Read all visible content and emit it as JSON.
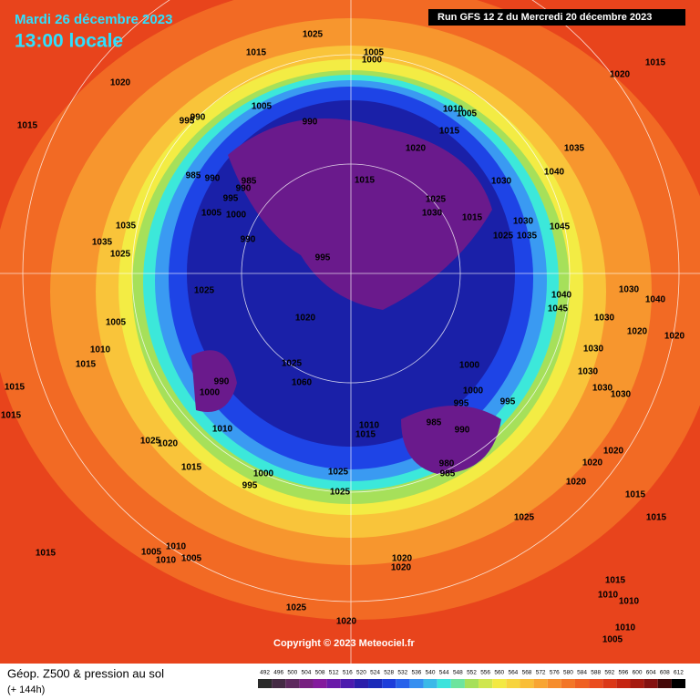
{
  "header": {
    "date": "Mardi 26 décembre 2023",
    "time": "13:00 locale",
    "run": "Run GFS 12 Z du Mercredi 20 décembre 2023"
  },
  "footer": {
    "title": "Géop. Z500 & pression au sol",
    "forecast": "(+ 144h)",
    "copyright": "Copyright © 2023 Meteociel.fr"
  },
  "legend": {
    "ticks": [
      492,
      496,
      500,
      504,
      508,
      512,
      516,
      520,
      524,
      528,
      532,
      536,
      540,
      544,
      548,
      552,
      556,
      560,
      564,
      568,
      572,
      576,
      580,
      584,
      588,
      592,
      596,
      600,
      604,
      608,
      612
    ]
  },
  "pressure_labels": [
    1025,
    1015,
    1005,
    1000,
    1020,
    1015,
    1020,
    995,
    990,
    1005,
    990,
    1010,
    1005,
    1015,
    1020,
    1035,
    1015,
    1040,
    985,
    990,
    985,
    990,
    995,
    1000,
    1005,
    1015,
    1030,
    1025,
    1030,
    1015,
    1030,
    1045,
    1035,
    1025,
    990,
    1035,
    1035,
    1025,
    995,
    1025,
    1040,
    1030,
    1040,
    1045,
    1020,
    1005,
    1030,
    1020,
    1010,
    1030,
    1015,
    1025,
    1000,
    1030,
    990,
    1060,
    1000,
    1015,
    1000,
    995,
    995,
    1030,
    1030,
    1015,
    985,
    990,
    1010,
    1010,
    1015,
    1025,
    1020,
    980,
    985,
    1020,
    1015,
    1000,
    1025,
    995,
    1020,
    1020,
    1025,
    1015,
    1025,
    1015,
    1015,
    1005,
    1010,
    1010,
    1005,
    1020,
    1020,
    1015,
    1010,
    1010,
    1025,
    1020,
    1010,
    1005,
    1020
  ]
}
